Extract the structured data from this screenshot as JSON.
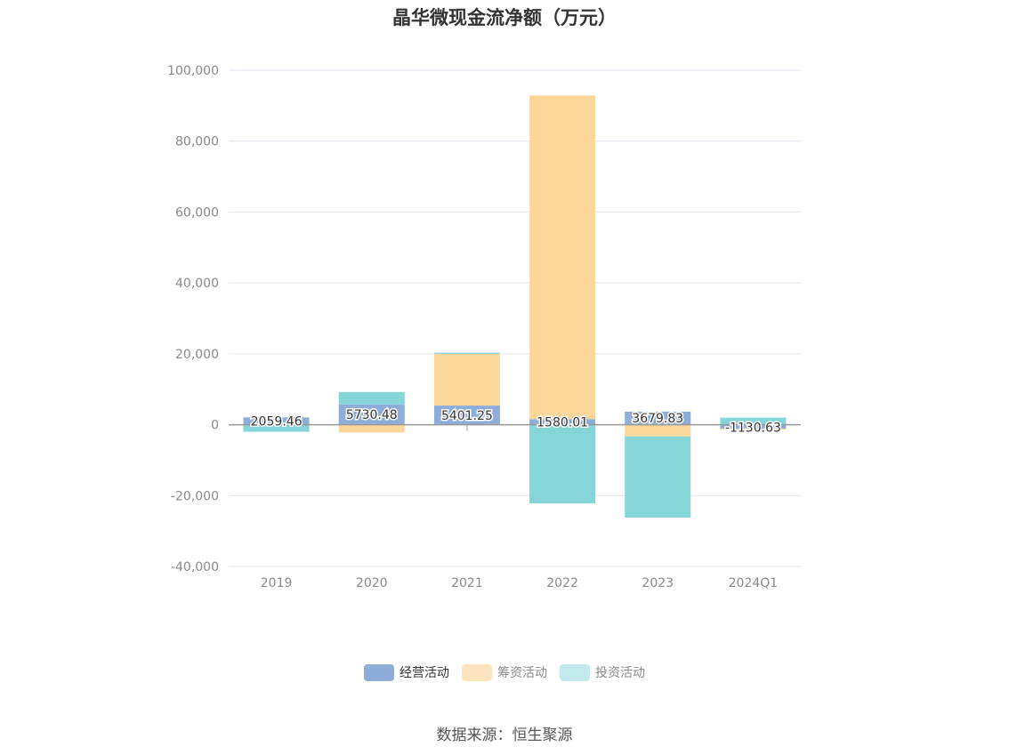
{
  "title": "晶华微现金流净额（万元）",
  "source": "数据来源：恒生聚源",
  "colors": {
    "operating": "#8fadd9",
    "financing": "#fdd79a",
    "investing": "#86d5d9",
    "grid": "#e3e6f0",
    "axis": "#999999"
  },
  "chart_data": {
    "type": "bar",
    "stacked": true,
    "categories": [
      "2019",
      "2020",
      "2021",
      "2022",
      "2023",
      "2024Q1"
    ],
    "series": [
      {
        "name": "经营活动",
        "values": [
          2059.46,
          5730.48,
          5401.25,
          1580.01,
          3679.83,
          -1130.63
        ]
      },
      {
        "name": "筹资活动",
        "values": [
          0,
          -2200,
          14600,
          91300,
          -3300,
          -300
        ]
      },
      {
        "name": "投资活动",
        "values": [
          -2000,
          3500,
          300,
          -22200,
          -22900,
          2000
        ]
      }
    ],
    "data_labels": [
      "2059.46",
      "5730.48",
      "5401.25",
      "1580.01",
      "3679.83",
      "-1130.63"
    ],
    "y_ticks": [
      "100,000",
      "80,000",
      "60,000",
      "40,000",
      "20,000",
      "0",
      "-20,000",
      "-40,000"
    ],
    "ylim": [
      -40000,
      100000
    ],
    "grid": true,
    "legend_position": "bottom"
  },
  "legend": [
    {
      "label": "经营活动",
      "color": "#8fadd9"
    },
    {
      "label": "筹资活动",
      "color": "#fde3bd"
    },
    {
      "label": "投资活动",
      "color": "#c2eaec"
    }
  ]
}
